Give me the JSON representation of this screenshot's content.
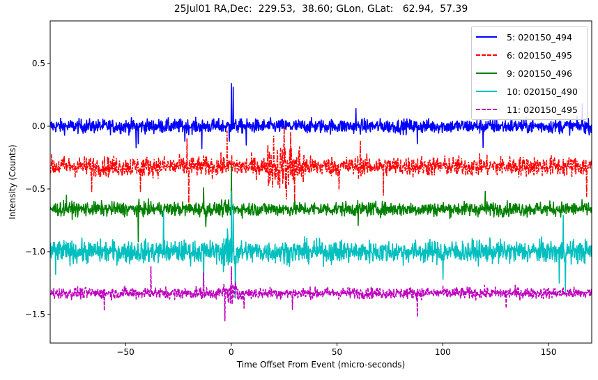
{
  "chart_data": {
    "type": "line",
    "title": "25Jul01 RA,Dec:  229.53,  38.60; GLon, GLat:   62.94,  57.39",
    "xlabel": "Time Offset From Event (micro-seconds)",
    "ylabel": "Intensity (Counts)",
    "xlim": [
      -85.6,
      170.4
    ],
    "ylim": [
      -1.728,
      0.839
    ],
    "xticks": [
      -50,
      0,
      50,
      100,
      150
    ],
    "xtick_labels": [
      "−50",
      "0",
      "50",
      "100",
      "150"
    ],
    "yticks": [
      0.5,
      0.0,
      -0.5,
      -1.0,
      -1.5
    ],
    "ytick_labels": [
      "0.5",
      "0.0",
      "−0.5",
      "−1.0",
      "−1.5"
    ],
    "grid": false,
    "legend_position": "upper right",
    "series": [
      {
        "name": "5: 020150_494",
        "color": "#0000ff",
        "linestyle": "solid",
        "baseline": 0.0,
        "noise": 0.05,
        "spikes": [
          [
            -14,
            0.28
          ],
          [
            -14,
            -0.18
          ],
          [
            0,
            0.34
          ],
          [
            1,
            0.31
          ],
          [
            7,
            0.33
          ],
          [
            7,
            -0.15
          ],
          [
            -45,
            -0.17
          ],
          [
            -44,
            -0.14
          ],
          [
            -1,
            -0.12
          ],
          [
            59,
            -0.16
          ],
          [
            59,
            0.14
          ],
          [
            88,
            0.14
          ],
          [
            88,
            -0.14
          ],
          [
            119,
            0.22
          ],
          [
            119,
            -0.17
          ],
          [
            -22,
            -0.12
          ],
          [
            166,
            0.18
          ]
        ]
      },
      {
        "name": "6: 020150_495",
        "color": "#ff0000",
        "linestyle": "dashdot",
        "baseline": -0.32,
        "noise": 0.07,
        "spikes": [
          [
            -21,
            -0.1
          ],
          [
            -20,
            -0.68
          ],
          [
            25,
            -0.0
          ],
          [
            26,
            -0.58
          ],
          [
            28,
            -0.05
          ],
          [
            30,
            -0.6
          ],
          [
            20,
            -0.08
          ],
          [
            -2,
            -0.04
          ],
          [
            -42,
            -0.4
          ],
          [
            -66,
            -0.52
          ],
          [
            168,
            -0.02
          ],
          [
            168,
            -0.56
          ],
          [
            61,
            -0.12
          ],
          [
            51,
            -0.5
          ],
          [
            72,
            -0.55
          ],
          [
            -43,
            -0.52
          ]
        ]
      },
      {
        "name": "9: 020150_496",
        "color": "#008000",
        "linestyle": "solid",
        "baseline": -0.66,
        "noise": 0.05,
        "spikes": [
          [
            -44,
            -0.28
          ],
          [
            -44,
            -0.92
          ],
          [
            0,
            -0.32
          ],
          [
            -13,
            -0.49
          ],
          [
            -12,
            -0.8
          ],
          [
            60,
            -0.79
          ],
          [
            120,
            -0.52
          ],
          [
            -78,
            -0.55
          ]
        ]
      },
      {
        "name": "10: 020150_490",
        "color": "#00bfbf",
        "linestyle": "solid",
        "baseline": -1.0,
        "noise": 0.08,
        "spikes": [
          [
            0,
            -0.52
          ],
          [
            1,
            -0.62
          ],
          [
            2,
            -1.37
          ],
          [
            -32,
            -0.68
          ],
          [
            -13,
            -1.27
          ],
          [
            157,
            -0.71
          ],
          [
            158,
            -1.32
          ],
          [
            -83,
            -1.18
          ],
          [
            100,
            -1.22
          ],
          [
            155,
            -1.25
          ]
        ]
      },
      {
        "name": "11: 020150_495",
        "color": "#bf00bf",
        "linestyle": "dashed",
        "baseline": -1.33,
        "noise": 0.04,
        "spikes": [
          [
            -38,
            -1.12
          ],
          [
            -13,
            -1.51
          ],
          [
            -13,
            -1.17
          ],
          [
            0,
            -1.65
          ],
          [
            0,
            -1.12
          ],
          [
            6,
            -1.45
          ],
          [
            88,
            -1.12
          ],
          [
            88,
            -1.52
          ],
          [
            -60,
            -1.47
          ],
          [
            130,
            -1.45
          ],
          [
            29,
            -1.46
          ],
          [
            -3,
            -1.55
          ]
        ]
      }
    ]
  }
}
